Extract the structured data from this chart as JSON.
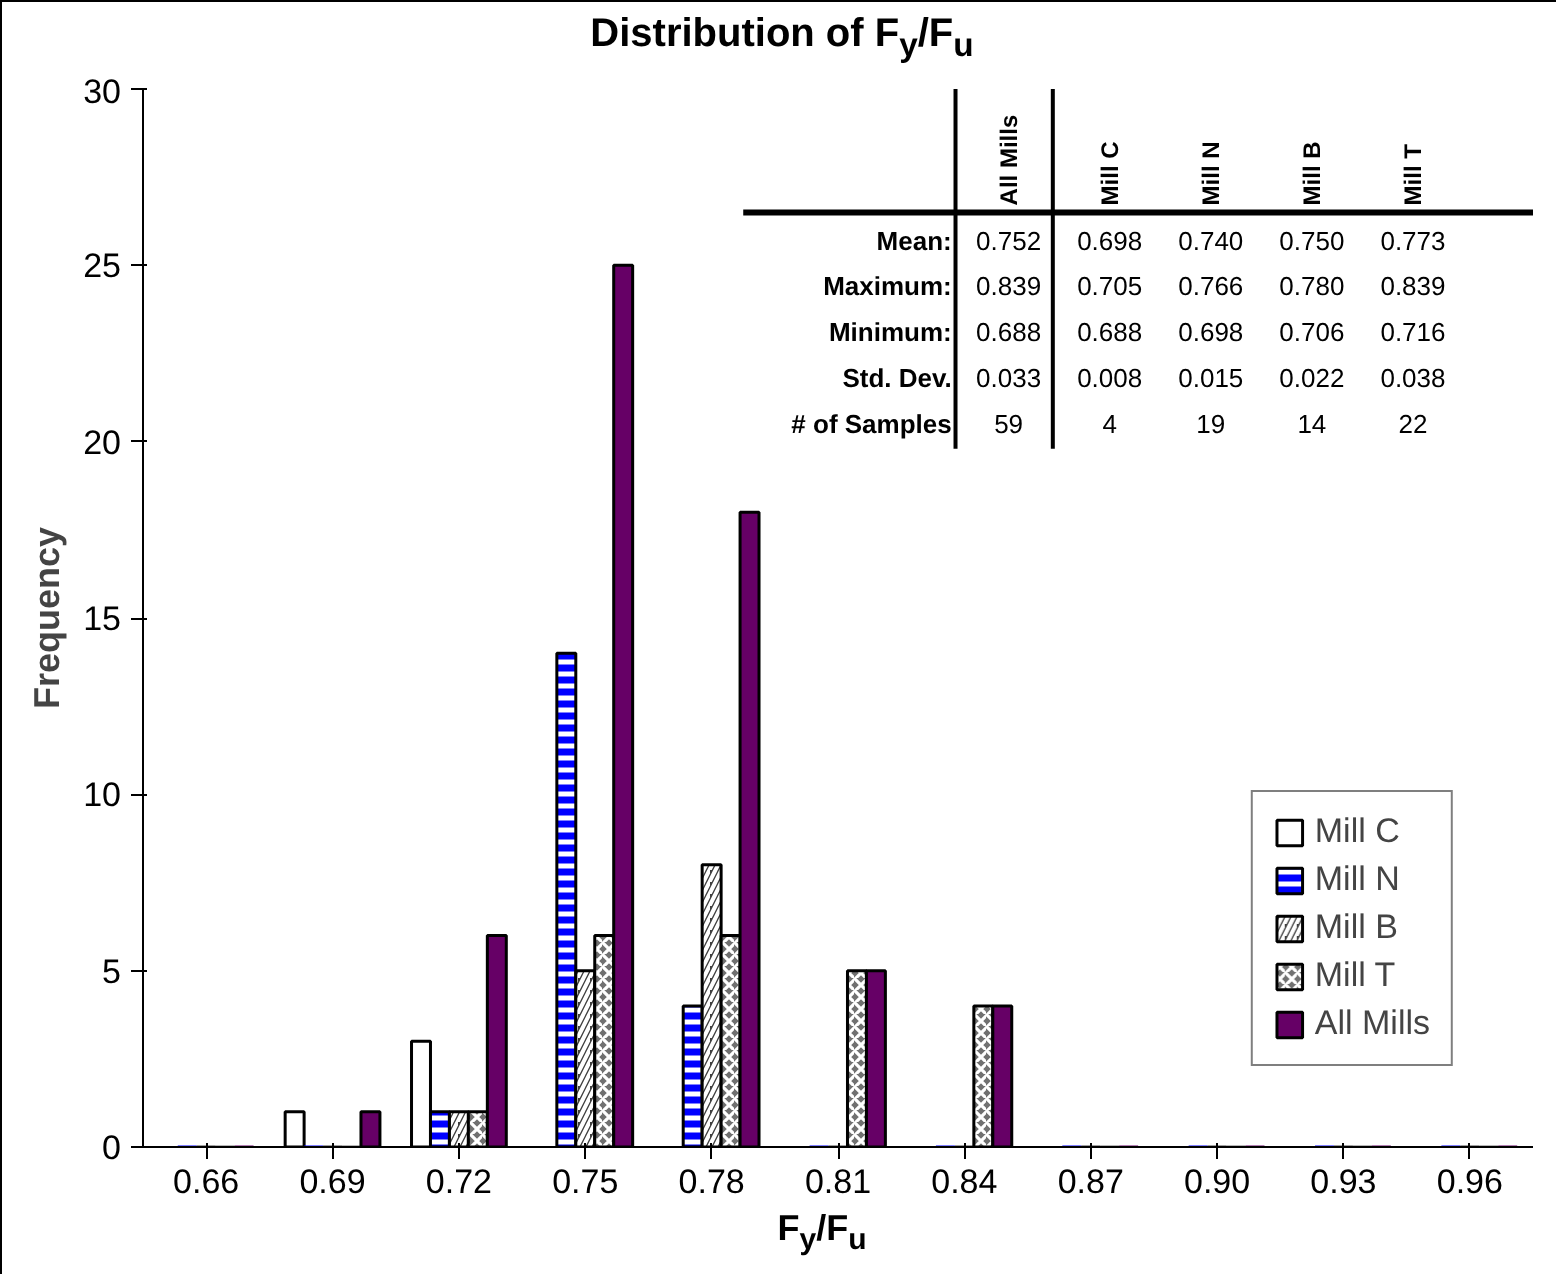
{
  "chart_data": {
    "type": "bar",
    "title": "Distribution of F$_{y}$/F$_{u}$",
    "xlabel": "F$_{y}$/F$_{u}$",
    "ylabel": "Frequency",
    "categories": [
      "0.66",
      "0.69",
      "0.72",
      "0.75",
      "0.78",
      "0.81",
      "0.84",
      "0.87",
      "0.90",
      "0.93",
      "0.96"
    ],
    "series": [
      {
        "name": "Mill C",
        "color": "#ffffff",
        "values": [
          0,
          1,
          3,
          0,
          0,
          0,
          0,
          0,
          0,
          0,
          0
        ]
      },
      {
        "name": "Mill N",
        "color": "#0000ff",
        "values": [
          0,
          0,
          1,
          14,
          4,
          0,
          0,
          0,
          0,
          0,
          0
        ]
      },
      {
        "name": "Mill B",
        "color": "#404040",
        "values": [
          0,
          0,
          1,
          5,
          8,
          0,
          0,
          0,
          0,
          0,
          0
        ]
      },
      {
        "name": "Mill T",
        "color": "#707070",
        "values": [
          0,
          0,
          1,
          6,
          6,
          5,
          4,
          0,
          0,
          0,
          0
        ]
      },
      {
        "name": "All Mills",
        "color": "#660066",
        "values": [
          0,
          1,
          6,
          25,
          18,
          5,
          4,
          0,
          0,
          0,
          0
        ]
      }
    ],
    "ylim": [
      0,
      30
    ],
    "yticks": [
      0,
      5,
      10,
      15,
      20,
      25,
      30
    ],
    "legend": "bottom right",
    "annotations": [
      "All Mills",
      "Mill C",
      "Mill N",
      "Mill B",
      "Mill T",
      "Mean:",
      "0.752",
      "0.698",
      "0.740",
      "0.750",
      "0.773",
      "Maximum:",
      "0.839",
      "0.705",
      "0.766",
      "0.780",
      "0.839",
      "Minimum:",
      "0.688",
      "0.688",
      "0.698",
      "0.706",
      "0.716",
      "Std. Dev.",
      "0.033",
      "0.008",
      "0.015",
      "0.022",
      "0.038",
      "# of Samples",
      "59",
      "4",
      "19",
      "14",
      "22"
    ]
  }
}
